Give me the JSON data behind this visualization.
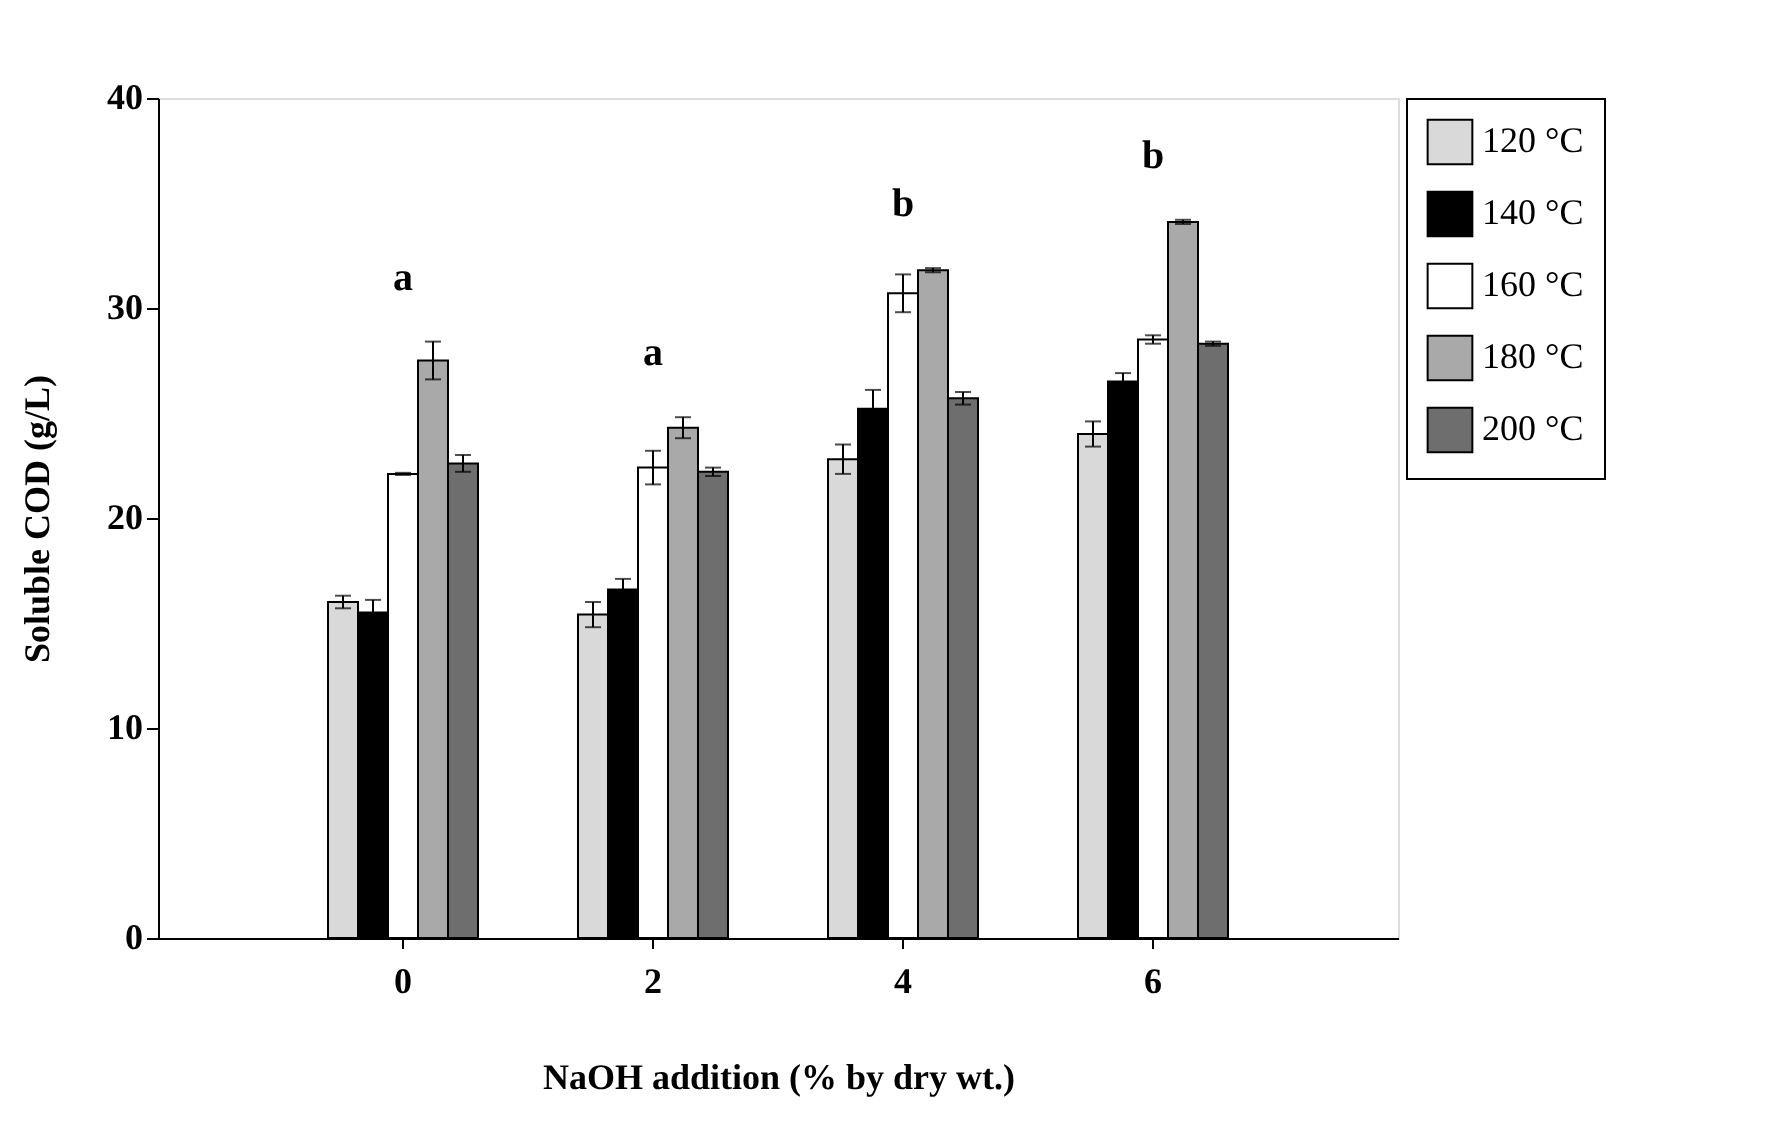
{
  "chart_data": {
    "type": "bar",
    "xlabel": "NaOH addition (% by dry wt.)",
    "ylabel": "Soluble COD (g/L)",
    "categories": [
      "0",
      "2",
      "4",
      "6"
    ],
    "series": [
      {
        "name": "120 °C",
        "color": "#d9d9d9",
        "values": [
          16.0,
          15.4,
          22.8,
          24.0
        ],
        "errors": [
          0.3,
          0.6,
          0.7,
          0.6
        ]
      },
      {
        "name": "140 °C",
        "color": "#000000",
        "values": [
          15.5,
          16.6,
          25.2,
          26.5
        ],
        "errors": [
          0.6,
          0.5,
          0.9,
          0.4
        ]
      },
      {
        "name": "160 °C",
        "color": "#ffffff",
        "values": [
          22.1,
          22.4,
          30.7,
          28.5
        ],
        "errors": [
          0.05,
          0.8,
          0.9,
          0.2
        ]
      },
      {
        "name": "180 °C",
        "color": "#a9a9a9",
        "values": [
          27.5,
          24.3,
          31.8,
          34.1
        ],
        "errors": [
          0.9,
          0.5,
          0.1,
          0.1
        ]
      },
      {
        "name": "200 °C",
        "color": "#6e6e6e",
        "values": [
          22.6,
          22.2,
          25.7,
          28.3
        ],
        "errors": [
          0.4,
          0.2,
          0.3,
          0.1
        ]
      }
    ],
    "ylim": [
      0,
      40
    ],
    "yticks": [
      0,
      10,
      20,
      30,
      40
    ],
    "grid": false,
    "legend": "top right",
    "annotations": [
      "a",
      "a",
      "b",
      "b"
    ]
  }
}
